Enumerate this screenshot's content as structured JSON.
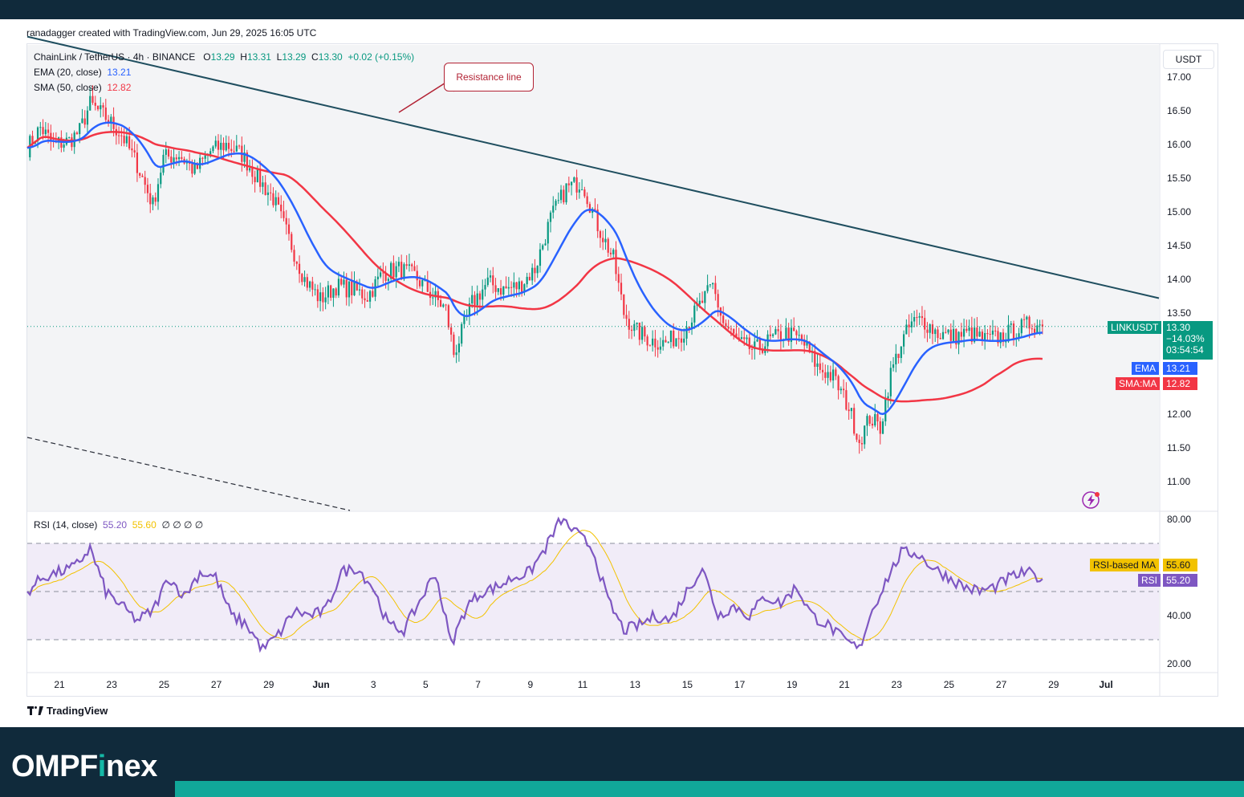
{
  "header": {
    "credit": "ranadagger created with TradingView.com, Jun 29, 2025 16:05 UTC"
  },
  "legend": {
    "symbol": "ChainLink / TetherUS · 4h · BINANCE",
    "open_label": "O",
    "open": "13.29",
    "high_label": "H",
    "high": "13.31",
    "low_label": "L",
    "low": "13.29",
    "close_label": "C",
    "close": "13.30",
    "change": "+0.02 (+0.15%)",
    "ema_label": "EMA (20, close)",
    "ema_value": "13.21",
    "sma_label": "SMA (50, close)",
    "sma_value": "12.82",
    "rsi_label": "RSI (14, close)",
    "rsi_value": "55.20",
    "rsi_ma_value": "55.60",
    "rsi_extra": "∅ ∅ ∅ ∅"
  },
  "annotation": {
    "text": "Resistance line"
  },
  "axis": {
    "currency": "USDT",
    "price_ticks": [
      "17.00",
      "16.50",
      "16.00",
      "15.50",
      "15.00",
      "14.50",
      "14.00",
      "13.50",
      "12.00",
      "11.50",
      "11.00"
    ],
    "rsi_ticks": [
      "80.00",
      "40.00",
      "20.00"
    ],
    "x_ticks": [
      "21",
      "23",
      "25",
      "27",
      "29",
      "Jun",
      "3",
      "5",
      "7",
      "9",
      "11",
      "13",
      "15",
      "17",
      "19",
      "21",
      "23",
      "25",
      "27",
      "29",
      "Jul"
    ]
  },
  "price_labels": {
    "symbol": "LINKUSDT",
    "price": "13.30",
    "change_pct": "−14.03%",
    "countdown": "03:54:54",
    "ema_tag": "EMA",
    "ema_value": "13.21",
    "sma_tag": "SMA:MA",
    "sma_value": "12.82",
    "rsi_ma_tag": "RSI-based MA",
    "rsi_ma_value": "55.60",
    "rsi_tag": "RSI",
    "rsi_value": "55.20"
  },
  "footer": {
    "tv_brand": "TradingView",
    "brand_pre": "OMPF",
    "brand_i": "i",
    "brand_post": "nex"
  },
  "colors": {
    "up": "#089981",
    "down": "#f23645",
    "ema": "#2962ff",
    "sma": "#f23645",
    "rsi": "#7e57c2",
    "rsi_ma": "#f2c200",
    "resistance": "#1f4e5f",
    "brand_bg": "#102a3b",
    "brand_accent": "#11a799"
  },
  "chart_data": {
    "type": "candlestick",
    "title": "ChainLink / TetherUS · 4h · BINANCE",
    "ylim": [
      10.7,
      17.3
    ],
    "rsi_ylim": [
      17,
      83
    ],
    "x_ticks": [
      "21",
      "23",
      "25",
      "27",
      "29",
      "Jun",
      "3",
      "5",
      "7",
      "9",
      "11",
      "13",
      "15",
      "17",
      "19",
      "21",
      "23",
      "25",
      "27",
      "29",
      "Jul"
    ],
    "close_anchors": [
      [
        0,
        15.95
      ],
      [
        5,
        16.25
      ],
      [
        10,
        16.0
      ],
      [
        16,
        16.05
      ],
      [
        20,
        16.2
      ],
      [
        24,
        16.6
      ],
      [
        30,
        16.4
      ],
      [
        36,
        16.15
      ],
      [
        42,
        15.7
      ],
      [
        48,
        15.1
      ],
      [
        52,
        15.8
      ],
      [
        58,
        15.85
      ],
      [
        64,
        15.6
      ],
      [
        70,
        15.9
      ],
      [
        76,
        16.0
      ],
      [
        82,
        15.85
      ],
      [
        88,
        15.5
      ],
      [
        94,
        15.2
      ],
      [
        100,
        14.6
      ],
      [
        106,
        14.0
      ],
      [
        112,
        13.7
      ],
      [
        118,
        13.9
      ],
      [
        124,
        13.85
      ],
      [
        130,
        13.75
      ],
      [
        136,
        14.1
      ],
      [
        142,
        14.15
      ],
      [
        148,
        14.05
      ],
      [
        154,
        13.8
      ],
      [
        160,
        13.55
      ],
      [
        163,
        12.9
      ],
      [
        166,
        13.2
      ],
      [
        170,
        13.65
      ],
      [
        176,
        13.95
      ],
      [
        182,
        13.85
      ],
      [
        188,
        13.9
      ],
      [
        194,
        14.15
      ],
      [
        200,
        14.9
      ],
      [
        206,
        15.35
      ],
      [
        212,
        15.45
      ],
      [
        218,
        14.8
      ],
      [
        224,
        14.3
      ],
      [
        228,
        13.5
      ],
      [
        232,
        13.25
      ],
      [
        238,
        13.1
      ],
      [
        244,
        13.05
      ],
      [
        250,
        13.2
      ],
      [
        256,
        13.55
      ],
      [
        262,
        13.9
      ],
      [
        266,
        13.35
      ],
      [
        272,
        13.05
      ],
      [
        278,
        12.95
      ],
      [
        284,
        13.1
      ],
      [
        290,
        13.2
      ],
      [
        296,
        13.1
      ],
      [
        302,
        12.7
      ],
      [
        308,
        12.55
      ],
      [
        314,
        12.1
      ],
      [
        318,
        11.6
      ],
      [
        322,
        11.95
      ],
      [
        326,
        11.8
      ],
      [
        330,
        12.6
      ],
      [
        334,
        13.05
      ],
      [
        338,
        13.35
      ],
      [
        342,
        13.4
      ],
      [
        348,
        13.2
      ],
      [
        354,
        13.15
      ],
      [
        360,
        13.2
      ],
      [
        366,
        13.1
      ],
      [
        372,
        13.15
      ],
      [
        378,
        13.25
      ],
      [
        384,
        13.35
      ],
      [
        388,
        13.3
      ]
    ],
    "rsi_anchors": [
      [
        0,
        50
      ],
      [
        6,
        56
      ],
      [
        12,
        58
      ],
      [
        18,
        60
      ],
      [
        24,
        68
      ],
      [
        30,
        50
      ],
      [
        36,
        44
      ],
      [
        42,
        38
      ],
      [
        48,
        42
      ],
      [
        54,
        56
      ],
      [
        60,
        48
      ],
      [
        66,
        58
      ],
      [
        72,
        56
      ],
      [
        78,
        40
      ],
      [
        84,
        36
      ],
      [
        90,
        26
      ],
      [
        96,
        32
      ],
      [
        102,
        42
      ],
      [
        108,
        40
      ],
      [
        114,
        42
      ],
      [
        120,
        58
      ],
      [
        126,
        60
      ],
      [
        132,
        52
      ],
      [
        138,
        36
      ],
      [
        144,
        34
      ],
      [
        150,
        46
      ],
      [
        156,
        58
      ],
      [
        162,
        28
      ],
      [
        168,
        44
      ],
      [
        174,
        50
      ],
      [
        180,
        52
      ],
      [
        186,
        56
      ],
      [
        192,
        58
      ],
      [
        198,
        68
      ],
      [
        204,
        80
      ],
      [
        210,
        74
      ],
      [
        216,
        68
      ],
      [
        222,
        46
      ],
      [
        228,
        34
      ],
      [
        234,
        36
      ],
      [
        240,
        40
      ],
      [
        246,
        38
      ],
      [
        252,
        50
      ],
      [
        258,
        60
      ],
      [
        264,
        40
      ],
      [
        270,
        44
      ],
      [
        276,
        40
      ],
      [
        282,
        48
      ],
      [
        288,
        45
      ],
      [
        294,
        52
      ],
      [
        300,
        40
      ],
      [
        306,
        36
      ],
      [
        312,
        30
      ],
      [
        318,
        26
      ],
      [
        322,
        40
      ],
      [
        328,
        54
      ],
      [
        334,
        66
      ],
      [
        340,
        66
      ],
      [
        346,
        60
      ],
      [
        352,
        56
      ],
      [
        358,
        52
      ],
      [
        364,
        50
      ],
      [
        370,
        52
      ],
      [
        376,
        56
      ],
      [
        382,
        58
      ],
      [
        388,
        55.2
      ]
    ],
    "resistance_line": {
      "start_close": 17.6,
      "end_close": 13.72
    },
    "last_close": 13.3,
    "ema_last": 13.21,
    "sma_last": 12.82,
    "rsi_last": 55.2,
    "rsi_ma_last": 55.6,
    "rsi_bands": [
      70,
      50,
      30
    ]
  }
}
